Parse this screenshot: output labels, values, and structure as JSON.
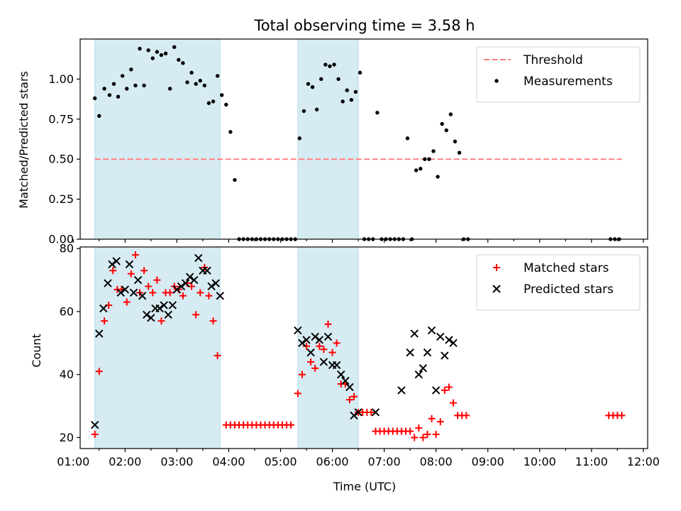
{
  "chart_data": [
    {
      "type": "scatter",
      "title": "Total observing time = 3.58 h",
      "xlabel": "",
      "ylabel": "Matched/Predicted stars",
      "xlim": [
        "01:08",
        "12:05"
      ],
      "ylim": [
        0,
        1.25
      ],
      "x_ticks": [
        "01:00",
        "02:00",
        "03:00",
        "04:00",
        "05:00",
        "06:00",
        "07:00",
        "08:00",
        "09:00",
        "10:00",
        "11:00",
        "12:00"
      ],
      "y_ticks": [
        "0.00",
        "0.25",
        "0.50",
        "0.75",
        "1.00"
      ],
      "shaded_intervals": [
        [
          "01:25",
          "03:50"
        ],
        [
          "05:20",
          "06:30"
        ]
      ],
      "threshold": {
        "name": "Threshold",
        "y": 0.5,
        "x_range": [
          "01:25",
          "11:35"
        ],
        "color": "#ff7f7f",
        "style": "dashed"
      },
      "legend": {
        "position": "top-right",
        "entries": [
          "Threshold",
          "Measurements"
        ]
      },
      "series": [
        {
          "name": "Measurements",
          "marker": "dot",
          "color": "#000000",
          "points": [
            [
              "01:25",
              0.88
            ],
            [
              "01:30",
              0.77
            ],
            [
              "01:36",
              0.94
            ],
            [
              "01:42",
              0.9
            ],
            [
              "01:47",
              0.97
            ],
            [
              "01:52",
              0.89
            ],
            [
              "01:57",
              1.02
            ],
            [
              "02:02",
              0.94
            ],
            [
              "02:07",
              1.06
            ],
            [
              "02:12",
              0.96
            ],
            [
              "02:17",
              1.19
            ],
            [
              "02:22",
              0.96
            ],
            [
              "02:27",
              1.18
            ],
            [
              "02:32",
              1.13
            ],
            [
              "02:37",
              1.17
            ],
            [
              "02:42",
              1.15
            ],
            [
              "02:47",
              1.16
            ],
            [
              "02:52",
              0.94
            ],
            [
              "02:57",
              1.2
            ],
            [
              "03:02",
              1.12
            ],
            [
              "03:07",
              1.1
            ],
            [
              "03:12",
              0.98
            ],
            [
              "03:17",
              1.04
            ],
            [
              "03:22",
              0.97
            ],
            [
              "03:27",
              0.99
            ],
            [
              "03:32",
              0.96
            ],
            [
              "03:37",
              0.85
            ],
            [
              "03:42",
              0.86
            ],
            [
              "03:47",
              1.02
            ],
            [
              "03:52",
              0.9
            ],
            [
              "03:57",
              0.84
            ],
            [
              "04:02",
              0.67
            ],
            [
              "04:07",
              0.37
            ],
            [
              "04:12",
              0
            ],
            [
              "04:17",
              0
            ],
            [
              "04:22",
              0
            ],
            [
              "04:27",
              0
            ],
            [
              "04:32",
              0
            ],
            [
              "04:37",
              0
            ],
            [
              "04:42",
              0
            ],
            [
              "04:47",
              0
            ],
            [
              "04:52",
              0
            ],
            [
              "04:57",
              0
            ],
            [
              "05:02",
              0
            ],
            [
              "05:07",
              0
            ],
            [
              "05:12",
              0
            ],
            [
              "05:17",
              0
            ],
            [
              "05:22",
              0.63
            ],
            [
              "05:27",
              0.8
            ],
            [
              "05:32",
              0.97
            ],
            [
              "05:37",
              0.95
            ],
            [
              "05:42",
              0.81
            ],
            [
              "05:47",
              1.0
            ],
            [
              "05:52",
              1.09
            ],
            [
              "05:57",
              1.08
            ],
            [
              "06:02",
              1.09
            ],
            [
              "06:07",
              1.0
            ],
            [
              "06:12",
              0.86
            ],
            [
              "06:17",
              0.93
            ],
            [
              "06:22",
              0.87
            ],
            [
              "06:27",
              0.92
            ],
            [
              "06:32",
              1.04
            ],
            [
              "06:37",
              0
            ],
            [
              "06:42",
              0
            ],
            [
              "06:47",
              0
            ],
            [
              "06:52",
              0.79
            ],
            [
              "06:57",
              0
            ],
            [
              "07:02",
              0
            ],
            [
              "07:07",
              0
            ],
            [
              "07:12",
              0
            ],
            [
              "07:17",
              0
            ],
            [
              "07:22",
              0
            ],
            [
              "07:27",
              0.63
            ],
            [
              "07:32",
              0
            ],
            [
              "07:37",
              0.43
            ],
            [
              "07:42",
              0.44
            ],
            [
              "07:47",
              0.5
            ],
            [
              "07:52",
              0.5
            ],
            [
              "07:57",
              0.55
            ],
            [
              "08:02",
              0.39
            ],
            [
              "08:07",
              0.72
            ],
            [
              "08:12",
              0.68
            ],
            [
              "08:17",
              0.78
            ],
            [
              "08:22",
              0.61
            ],
            [
              "08:27",
              0.54
            ],
            [
              "08:32",
              0
            ],
            [
              "08:37",
              0
            ],
            [
              "11:22",
              0
            ],
            [
              "11:27",
              0
            ],
            [
              "11:32",
              0
            ]
          ]
        }
      ]
    },
    {
      "type": "scatter",
      "title": "",
      "xlabel": "Time (UTC)",
      "ylabel": "Count",
      "xlim": [
        "01:08",
        "12:05"
      ],
      "ylim": [
        16.5,
        80.5
      ],
      "x_ticks": [
        "01:00",
        "02:00",
        "03:00",
        "04:00",
        "05:00",
        "06:00",
        "07:00",
        "08:00",
        "09:00",
        "10:00",
        "11:00",
        "12:00"
      ],
      "y_ticks": [
        "20",
        "40",
        "60",
        "80"
      ],
      "shaded_intervals": [
        [
          "01:25",
          "03:50"
        ],
        [
          "05:20",
          "06:30"
        ]
      ],
      "legend": {
        "position": "top-right",
        "entries": [
          "Matched stars",
          "Predicted stars"
        ]
      },
      "series": [
        {
          "name": "Matched stars",
          "marker": "+",
          "color": "#ff0000",
          "points": [
            [
              "01:25",
              21
            ],
            [
              "01:30",
              41
            ],
            [
              "01:36",
              57
            ],
            [
              "01:41",
              62
            ],
            [
              "01:46",
              73
            ],
            [
              "01:51",
              67
            ],
            [
              "01:56",
              67
            ],
            [
              "02:02",
              63
            ],
            [
              "02:07",
              72
            ],
            [
              "02:12",
              78
            ],
            [
              "02:17",
              66
            ],
            [
              "02:22",
              73
            ],
            [
              "02:27",
              68
            ],
            [
              "02:32",
              66
            ],
            [
              "02:37",
              70
            ],
            [
              "02:42",
              57
            ],
            [
              "02:47",
              66
            ],
            [
              "02:52",
              66
            ],
            [
              "02:57",
              68
            ],
            [
              "03:02",
              67
            ],
            [
              "03:07",
              65
            ],
            [
              "03:12",
              69
            ],
            [
              "03:17",
              68
            ],
            [
              "03:22",
              59
            ],
            [
              "03:27",
              66
            ],
            [
              "03:32",
              74
            ],
            [
              "03:37",
              65
            ],
            [
              "03:42",
              57
            ],
            [
              "03:47",
              46
            ],
            [
              "03:57",
              24
            ],
            [
              "04:02",
              24
            ],
            [
              "04:07",
              24
            ],
            [
              "04:12",
              24
            ],
            [
              "04:17",
              24
            ],
            [
              "04:22",
              24
            ],
            [
              "04:27",
              24
            ],
            [
              "04:32",
              24
            ],
            [
              "04:37",
              24
            ],
            [
              "04:42",
              24
            ],
            [
              "04:47",
              24
            ],
            [
              "04:52",
              24
            ],
            [
              "04:57",
              24
            ],
            [
              "05:02",
              24
            ],
            [
              "05:07",
              24
            ],
            [
              "05:12",
              24
            ],
            [
              "05:20",
              34
            ],
            [
              "05:25",
              40
            ],
            [
              "05:30",
              49
            ],
            [
              "05:35",
              44
            ],
            [
              "05:40",
              42
            ],
            [
              "05:45",
              49
            ],
            [
              "05:50",
              48
            ],
            [
              "05:55",
              56
            ],
            [
              "06:00",
              47
            ],
            [
              "06:05",
              50
            ],
            [
              "06:10",
              37
            ],
            [
              "06:15",
              37
            ],
            [
              "06:20",
              32
            ],
            [
              "06:25",
              33
            ],
            [
              "06:30",
              28
            ],
            [
              "06:35",
              28
            ],
            [
              "06:40",
              28
            ],
            [
              "06:45",
              28
            ],
            [
              "06:50",
              22
            ],
            [
              "06:55",
              22
            ],
            [
              "07:00",
              22
            ],
            [
              "07:05",
              22
            ],
            [
              "07:10",
              22
            ],
            [
              "07:15",
              22
            ],
            [
              "07:20",
              22
            ],
            [
              "07:25",
              22
            ],
            [
              "07:30",
              22
            ],
            [
              "07:35",
              20
            ],
            [
              "07:40",
              23
            ],
            [
              "07:45",
              20
            ],
            [
              "07:50",
              21
            ],
            [
              "07:55",
              26
            ],
            [
              "08:00",
              21
            ],
            [
              "08:05",
              25
            ],
            [
              "08:10",
              35
            ],
            [
              "08:15",
              36
            ],
            [
              "08:20",
              31
            ],
            [
              "08:25",
              27
            ],
            [
              "08:30",
              27
            ],
            [
              "08:35",
              27
            ],
            [
              "11:20",
              27
            ],
            [
              "11:25",
              27
            ],
            [
              "11:30",
              27
            ],
            [
              "11:35",
              27
            ]
          ]
        },
        {
          "name": "Predicted stars",
          "marker": "x",
          "color": "#000000",
          "points": [
            [
              "01:25",
              24
            ],
            [
              "01:30",
              53
            ],
            [
              "01:35",
              61
            ],
            [
              "01:40",
              69
            ],
            [
              "01:45",
              75
            ],
            [
              "01:50",
              76
            ],
            [
              "01:55",
              66
            ],
            [
              "02:00",
              67
            ],
            [
              "02:05",
              75
            ],
            [
              "02:10",
              66
            ],
            [
              "02:15",
              70
            ],
            [
              "02:20",
              65
            ],
            [
              "02:25",
              59
            ],
            [
              "02:30",
              58
            ],
            [
              "02:35",
              61
            ],
            [
              "02:40",
              61
            ],
            [
              "02:45",
              62
            ],
            [
              "02:50",
              59
            ],
            [
              "02:55",
              62
            ],
            [
              "03:00",
              67
            ],
            [
              "03:05",
              68
            ],
            [
              "03:10",
              69
            ],
            [
              "03:15",
              71
            ],
            [
              "03:20",
              70
            ],
            [
              "03:25",
              77
            ],
            [
              "03:30",
              73
            ],
            [
              "03:35",
              73
            ],
            [
              "03:40",
              68
            ],
            [
              "03:45",
              69
            ],
            [
              "03:50",
              65
            ],
            [
              "05:20",
              54
            ],
            [
              "05:25",
              50
            ],
            [
              "05:30",
              51
            ],
            [
              "05:35",
              47
            ],
            [
              "05:40",
              52
            ],
            [
              "05:45",
              51
            ],
            [
              "05:50",
              44
            ],
            [
              "05:55",
              52
            ],
            [
              "06:00",
              43
            ],
            [
              "06:05",
              43
            ],
            [
              "06:10",
              40
            ],
            [
              "06:15",
              38
            ],
            [
              "06:20",
              36
            ],
            [
              "06:25",
              27
            ],
            [
              "06:30",
              28
            ],
            [
              "06:50",
              28
            ],
            [
              "07:20",
              35
            ],
            [
              "07:30",
              47
            ],
            [
              "07:35",
              53
            ],
            [
              "07:40",
              40
            ],
            [
              "07:45",
              42
            ],
            [
              "07:50",
              47
            ],
            [
              "07:55",
              54
            ],
            [
              "08:00",
              35
            ],
            [
              "08:05",
              52
            ],
            [
              "08:10",
              46
            ],
            [
              "08:15",
              51
            ],
            [
              "08:20",
              50
            ]
          ]
        }
      ]
    }
  ]
}
